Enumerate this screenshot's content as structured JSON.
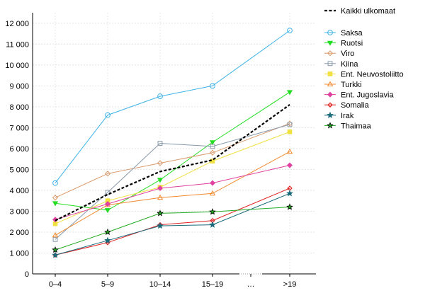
{
  "chart_data": {
    "type": "line",
    "categories": [
      "0–4",
      "5–9",
      "10–14",
      "15–19",
      "…",
      ">19"
    ],
    "ylim": [
      0,
      12500
    ],
    "yticks": [
      0,
      1000,
      2000,
      3000,
      4000,
      5000,
      6000,
      7000,
      8000,
      9000,
      10000,
      11000,
      12000
    ],
    "ytick_labels": [
      "0",
      "1 000",
      "2 000",
      "3 000",
      "4 000",
      "5 000",
      "6 000",
      "7 000",
      "8 000",
      "9 000",
      "10 000",
      "11 000",
      "12 000"
    ],
    "grid": true,
    "legend_position": "right",
    "series": [
      {
        "name": "Kaikki ulkomaat",
        "color": "#000000",
        "style": "dashed",
        "marker": "none",
        "values": [
          2550,
          3800,
          4900,
          5450,
          null,
          8100
        ]
      },
      {
        "name": "Saksa",
        "color": "#3eb3e6",
        "marker": "circle",
        "values": [
          4350,
          7600,
          8500,
          9000,
          null,
          11650
        ]
      },
      {
        "name": "Ruotsi",
        "color": "#22dd22",
        "marker": "triangle-down",
        "values": [
          3380,
          3050,
          4500,
          6300,
          null,
          8700
        ]
      },
      {
        "name": "Viro",
        "color": "#d9996a",
        "marker": "diamond",
        "values": [
          3650,
          4800,
          5300,
          5800,
          null,
          7200
        ]
      },
      {
        "name": "Kiina",
        "color": "#8899aa",
        "marker": "square",
        "values": [
          1650,
          3900,
          6250,
          6100,
          null,
          7150
        ]
      },
      {
        "name": "Ent. Neuvostoliitto",
        "color": "#f0e040",
        "marker": "square-filled",
        "values": [
          2400,
          3500,
          4150,
          5400,
          null,
          6800
        ]
      },
      {
        "name": "Turkki",
        "color": "#f08a30",
        "marker": "triangle-up",
        "values": [
          1850,
          3300,
          3650,
          3850,
          null,
          5850
        ]
      },
      {
        "name": "Ent. Jugoslavia",
        "color": "#e040a0",
        "marker": "diamond-filled",
        "values": [
          2600,
          3350,
          4100,
          4350,
          null,
          5200
        ]
      },
      {
        "name": "Somalia",
        "color": "#e02020",
        "marker": "diamond-small",
        "values": [
          900,
          1500,
          2350,
          2550,
          null,
          4100
        ]
      },
      {
        "name": "Irak",
        "color": "#1a6a7a",
        "marker": "star",
        "values": [
          900,
          1600,
          2300,
          2350,
          null,
          3850
        ]
      },
      {
        "name": "Thaimaa",
        "color": "#22aa22",
        "marker": "star-filled",
        "values": [
          1150,
          2000,
          2900,
          2970,
          null,
          3200
        ]
      }
    ]
  }
}
